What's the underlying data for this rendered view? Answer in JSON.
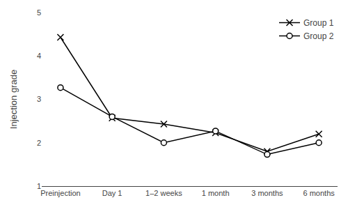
{
  "chart_data": {
    "type": "line",
    "categories": [
      "Preinjection",
      "Day 1",
      "1–2 weeks",
      "1 month",
      "3 months",
      "6 months"
    ],
    "series": [
      {
        "name": "Group 1",
        "color": "#000000",
        "marker": "x",
        "values": [
          4.43,
          2.57,
          2.43,
          2.23,
          1.8,
          2.2
        ]
      },
      {
        "name": "Group 2",
        "color": "#000000",
        "marker": "circle",
        "values": [
          3.27,
          2.6,
          2.0,
          2.27,
          1.73,
          2.0
        ]
      }
    ],
    "ylabel": "Injection grade",
    "ylim": [
      1,
      5
    ],
    "yticks": [
      1,
      2,
      3,
      4,
      5
    ],
    "grid": false,
    "legend": "upper right"
  }
}
